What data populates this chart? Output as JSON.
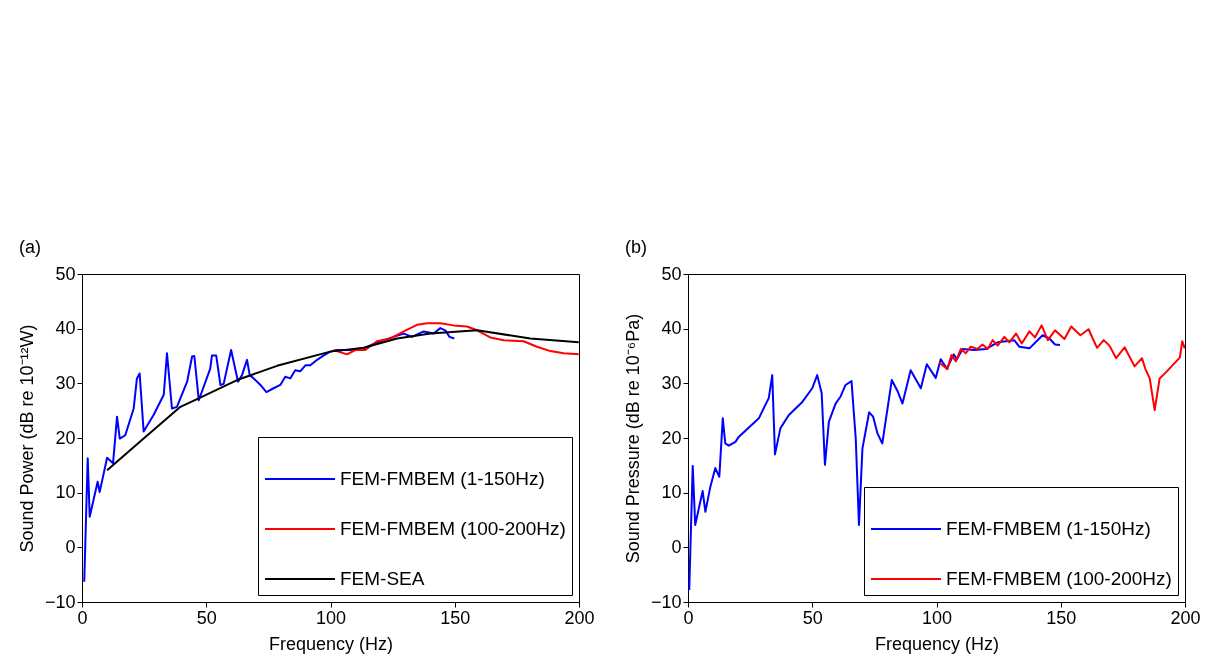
{
  "chart_data": [
    {
      "type": "line",
      "title": "(a)",
      "xlabel": "Frequency (Hz)",
      "ylabel": "Sound Power (dB re 10⁻¹²W)",
      "xlim": [
        0,
        200
      ],
      "ylim": [
        -10,
        50
      ],
      "xticks": [
        0,
        50,
        100,
        150,
        200
      ],
      "yticks": [
        -10,
        0,
        10,
        20,
        30,
        40,
        50
      ],
      "legend": "bottom right",
      "series": [
        {
          "name": "FEM-FMBEM (1-150Hz)",
          "color": "#0000ff",
          "x": [
            0.9,
            2.3,
            3.1,
            6.3,
            7.1,
            10.1,
            12.5,
            14.1,
            15.2,
            17.4,
            20.8,
            22.1,
            23.2,
            24.8,
            28.8,
            32.9,
            34.2,
            36.2,
            38.2,
            42.3,
            44.3,
            45.2,
            47.0,
            51.6,
            52.3,
            54.0,
            55.7,
            57.0,
            60.0,
            62.8,
            64.4,
            66.4,
            67.5,
            69.1,
            71.8,
            74.2,
            77.1,
            79.8,
            81.8,
            83.8,
            85.8,
            87.8,
            89.9,
            91.9,
            94.6,
            97.3,
            99.9,
            102.6,
            108,
            113.4,
            118.7,
            125.4,
            129.5,
            132.8,
            137.5,
            141.5,
            144.2,
            146.2,
            147.9,
            149.8
          ],
          "values": [
            -6.3,
            16.3,
            5.6,
            12.0,
            10.1,
            16.4,
            15.4,
            23.9,
            19.9,
            20.5,
            25.4,
            30.9,
            31.8,
            21.2,
            24.2,
            27.9,
            35.5,
            25.4,
            25.7,
            30.3,
            34.9,
            35.0,
            26.9,
            32.7,
            35.1,
            35.1,
            29.7,
            29.9,
            36.1,
            30.3,
            31.5,
            34.3,
            31.5,
            30.9,
            29.7,
            28.4,
            29.1,
            29.7,
            31.2,
            30.9,
            32.4,
            32.2,
            33.3,
            33.3,
            34.3,
            35.1,
            35.8,
            36.1,
            36.1,
            36.4,
            37.5,
            38.5,
            39.1,
            38.5,
            39.5,
            39.1,
            40.1,
            39.7,
            38.5,
            38.2
          ]
        },
        {
          "name": "FEM-FMBEM (100-200Hz)",
          "color": "#ff0000",
          "x": [
            101.3,
            106.6,
            110,
            114,
            118.7,
            124.1,
            129.5,
            134.8,
            138.8,
            144.2,
            149.6,
            154.9,
            159,
            164.3,
            169.7,
            177.7,
            183.1,
            188.5,
            193.8,
            199.9
          ],
          "values": [
            36.1,
            35.3,
            36.1,
            36.1,
            37.7,
            38.2,
            39.5,
            40.7,
            41.0,
            41.0,
            40.6,
            40.4,
            39.7,
            38.4,
            37.9,
            37.7,
            36.7,
            35.9,
            35.5,
            35.3
          ]
        },
        {
          "name": "FEM-SEA",
          "color": "#000000",
          "x": [
            10.1,
            24.8,
            39.6,
            46.3,
            62.4,
            78.5,
            99.9,
            113.4,
            126.8,
            140.2,
            159,
            180.4,
            199.9
          ],
          "values": [
            14.1,
            19.9,
            25.7,
            27.1,
            30.6,
            33.2,
            35.8,
            36.5,
            38.2,
            39.1,
            39.7,
            38.2,
            37.5
          ]
        }
      ]
    },
    {
      "type": "line",
      "title": "(b)",
      "xlabel": "Frequency (Hz)",
      "ylabel": "Sound Pressure (dB re 10⁻⁶Pa)",
      "xlim": [
        0,
        200
      ],
      "ylim": [
        -10,
        50
      ],
      "xticks": [
        0,
        50,
        100,
        150,
        200
      ],
      "yticks": [
        -10,
        0,
        10,
        20,
        30,
        40,
        50
      ],
      "legend": "bottom right",
      "series": [
        {
          "name": "FEM-FMBEM (1-150Hz)",
          "color": "#0000ff",
          "x": [
            0.5,
            1.9,
            2.9,
            5.9,
            7.0,
            9.0,
            11.0,
            12.6,
            14.0,
            15.0,
            16.4,
            19.1,
            20.4,
            28.5,
            32.5,
            33.9,
            35.0,
            37.2,
            40.6,
            46.0,
            50.0,
            52.0,
            53.8,
            55.1,
            56.7,
            59.4,
            61.4,
            63.4,
            65.8,
            67.5,
            68.8,
            70.2,
            72.9,
            74.5,
            76.2,
            78.2,
            82.0,
            84.3,
            86.3,
            89.6,
            93.7,
            96.1,
            99.7,
            101.7,
            104.2,
            106.9,
            108.2,
            110.5,
            115.2,
            120.0,
            124.6,
            131.3,
            133.3,
            137.4,
            142.7,
            145.4,
            147.7,
            149.7
          ],
          "values": [
            -7.8,
            14.9,
            4.1,
            10.3,
            6.5,
            11.1,
            14.5,
            12.9,
            23.6,
            19.0,
            18.6,
            19.3,
            20.2,
            23.6,
            27.3,
            31.5,
            17.0,
            21.8,
            24.2,
            26.6,
            29.1,
            31.5,
            28.2,
            15.1,
            23.0,
            26.3,
            27.6,
            29.7,
            30.4,
            19.9,
            4.1,
            18.1,
            24.7,
            23.9,
            20.9,
            19.0,
            30.6,
            28.6,
            26.3,
            32.4,
            29.1,
            33.5,
            31.0,
            34.4,
            32.7,
            35.3,
            34.4,
            36.3,
            36.1,
            36.3,
            37.5,
            37.9,
            36.7,
            36.4,
            38.8,
            38.2,
            37.1,
            37.0
          ]
        },
        {
          "name": "FEM-FMBEM (100-200Hz)",
          "color": "#ff0000",
          "x": [
            101.1,
            104.4,
            106.0,
            107.8,
            109.8,
            111.8,
            113.8,
            116.5,
            118.5,
            120.6,
            122.6,
            124.6,
            127.3,
            129.3,
            132.0,
            134.3,
            137.4,
            139.6,
            142.3,
            144.8,
            147.7,
            151.5,
            154.2,
            157.9,
            161.2,
            164.6,
            167.3,
            169.6,
            172.3,
            175.7,
            179.7,
            182.7,
            184.0,
            185.8,
            187.8,
            189.8,
            192.5,
            197.9,
            198.9,
            199.9
          ],
          "values": [
            33.8,
            32.6,
            35.2,
            34.0,
            36.3,
            35.5,
            36.7,
            36.3,
            37.1,
            36.3,
            37.9,
            36.9,
            38.5,
            37.5,
            39.1,
            37.3,
            39.5,
            38.4,
            40.6,
            37.9,
            39.7,
            38.1,
            40.4,
            38.8,
            39.9,
            36.5,
            37.9,
            36.9,
            34.6,
            36.6,
            33.1,
            34.6,
            32.7,
            30.9,
            25.1,
            30.9,
            32.1,
            34.7,
            37.7,
            36.4
          ]
        }
      ]
    }
  ]
}
